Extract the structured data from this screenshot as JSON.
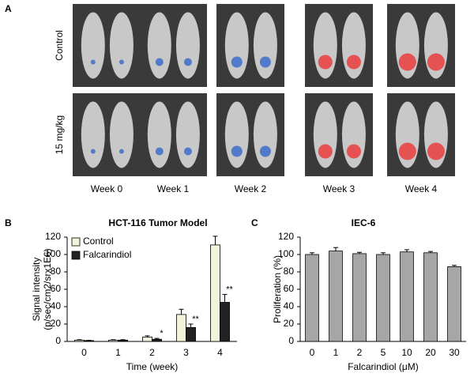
{
  "panel_a": {
    "label": "A",
    "rows": [
      "Control",
      "15 mg/kg"
    ],
    "columns": [
      "Week 0",
      "Week 1",
      "Week 2",
      "Week 3",
      "Week 4"
    ]
  },
  "chart_data": [
    {
      "type": "bar",
      "panel_label": "B",
      "title": "HCT-116 Tumor Model",
      "y_label": [
        "Signal intensity",
        "(p/sec/cm2/srx1E6)"
      ],
      "x_label": "Time (week)",
      "categories": [
        "0",
        "1",
        "2",
        "3",
        "4"
      ],
      "series": [
        {
          "name": "Control",
          "color": "#f3f3dc",
          "values": [
            1.5,
            1.5,
            5,
            31,
            111
          ],
          "errors": [
            0.5,
            0.5,
            1.5,
            6,
            10
          ]
        },
        {
          "name": "Falcarindiol",
          "color": "#222222",
          "values": [
            1,
            1.5,
            2.5,
            16,
            45
          ],
          "errors": [
            0.3,
            0.5,
            1,
            4,
            9
          ]
        }
      ],
      "significance": [
        null,
        null,
        "*",
        "**",
        "**"
      ],
      "ylim": [
        0,
        120
      ],
      "yticks": [
        0,
        20,
        40,
        60,
        80,
        100,
        120
      ],
      "legend": "top-left"
    },
    {
      "type": "bar",
      "panel_label": "C",
      "title": "IEC-6",
      "y_label": [
        "Proliferation (%)"
      ],
      "x_label": "Falcarindiol (μM)",
      "categories": [
        "0",
        "1",
        "2",
        "5",
        "10",
        "20",
        "30"
      ],
      "series": [
        {
          "color": "#a6a6a6",
          "values": [
            100,
            104,
            101,
            100,
            103,
            102,
            86
          ],
          "errors": [
            2,
            4,
            1.5,
            2,
            2.5,
            1.5,
            1.5
          ]
        }
      ],
      "ylim": [
        0,
        120
      ],
      "yticks": [
        0,
        20,
        40,
        60,
        80,
        100,
        120
      ]
    }
  ]
}
